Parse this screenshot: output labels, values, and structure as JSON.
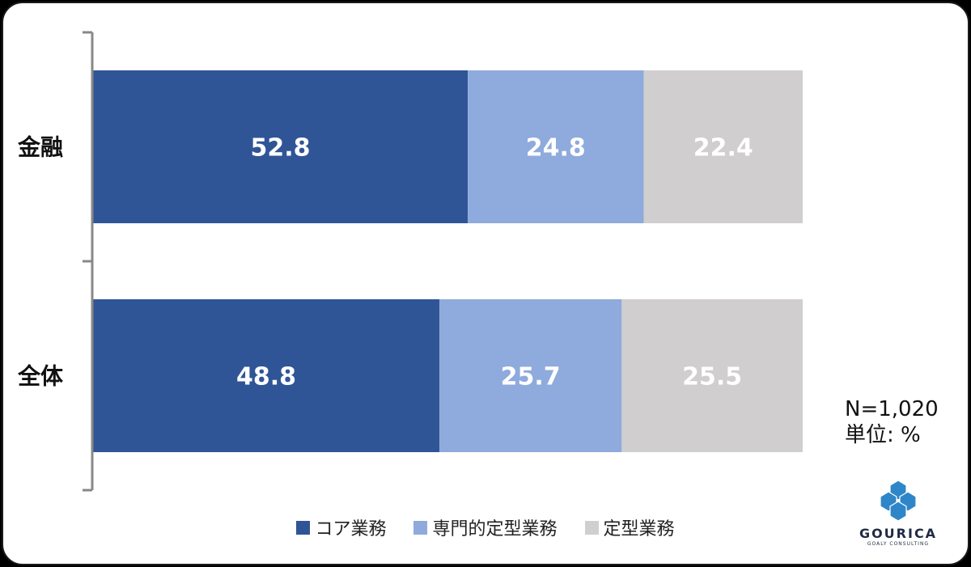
{
  "chart_data": {
    "type": "bar",
    "orientation": "horizontal",
    "stacked": true,
    "categories": [
      "金融",
      "全体"
    ],
    "series": [
      {
        "name": "コア業務",
        "color": "#2f5597",
        "values": [
          52.8,
          48.8
        ]
      },
      {
        "name": "専門的定型業務",
        "color": "#8faadc",
        "values": [
          24.8,
          25.7
        ]
      },
      {
        "name": "定型業務",
        "color": "#d0cece",
        "values": [
          22.4,
          25.5
        ]
      }
    ],
    "xlim": [
      0,
      100
    ],
    "legend_position": "bottom"
  },
  "notes": {
    "sample": "N=1,020",
    "unit": "単位: %"
  },
  "logo": {
    "name": "GOURICA",
    "tagline": "GOALY CONSULTING",
    "icon": "hexagon-cluster-logo-icon"
  }
}
